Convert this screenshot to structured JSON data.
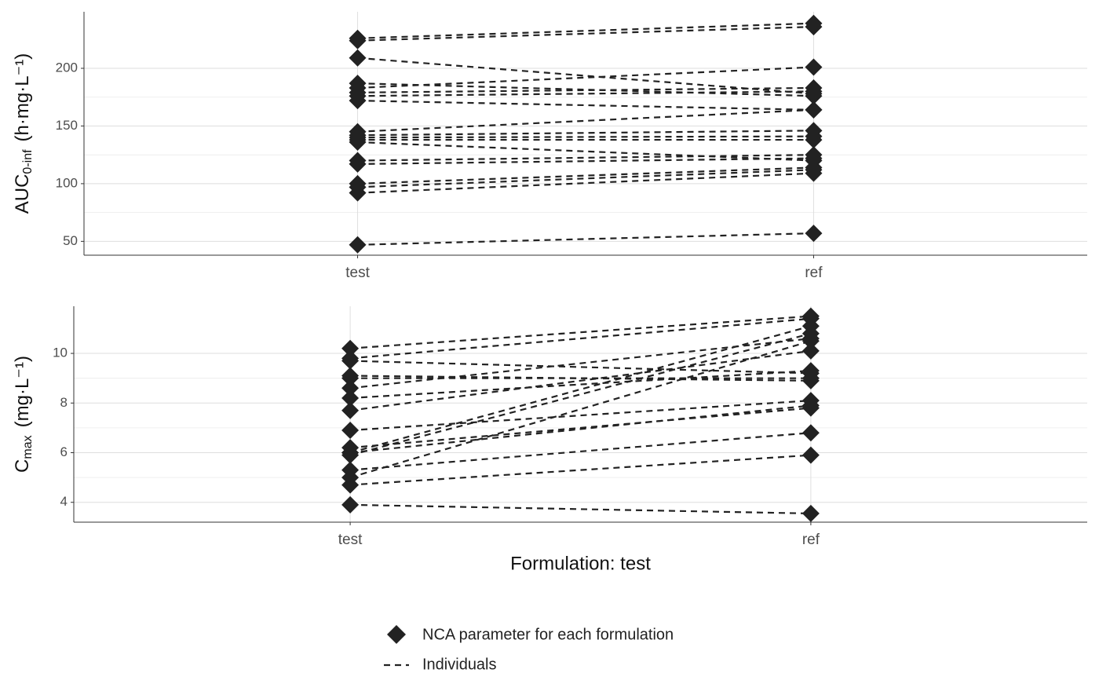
{
  "chart_data": [
    {
      "type": "line",
      "ylabel": {
        "main": "AUC",
        "sub": "0-inf",
        "unit": "(h·mg·L⁻¹)"
      },
      "categories": [
        "test",
        "ref"
      ],
      "color": "#222222",
      "marker": "diamond",
      "line_dash": "dashed",
      "grid": true,
      "ylim": [
        38,
        249
      ],
      "yticks": [
        50,
        100,
        150,
        200
      ],
      "series": [
        {
          "values": [
            226,
            239
          ]
        },
        {
          "values": [
            224,
            236
          ]
        },
        {
          "values": [
            209,
            178
          ]
        },
        {
          "values": [
            187,
            176
          ]
        },
        {
          "values": [
            183,
            201
          ]
        },
        {
          "values": [
            179,
            183
          ]
        },
        {
          "values": [
            176,
            180
          ]
        },
        {
          "values": [
            172,
            164
          ]
        },
        {
          "values": [
            145,
            164
          ]
        },
        {
          "values": [
            142,
            146
          ]
        },
        {
          "values": [
            140,
            141
          ]
        },
        {
          "values": [
            138,
            138
          ]
        },
        {
          "values": [
            136,
            120
          ]
        },
        {
          "values": [
            120,
            125
          ]
        },
        {
          "values": [
            117,
            122
          ]
        },
        {
          "values": [
            100,
            114
          ]
        },
        {
          "values": [
            97,
            112
          ]
        },
        {
          "values": [
            92,
            109
          ]
        },
        {
          "values": [
            47,
            57
          ]
        }
      ]
    },
    {
      "type": "line",
      "ylabel": {
        "main": "C",
        "sub": "max",
        "unit": "(mg·L⁻¹)"
      },
      "xlabel": "Formulation: test",
      "categories": [
        "test",
        "ref"
      ],
      "color": "#222222",
      "marker": "diamond",
      "line_dash": "dashed",
      "grid": true,
      "ylim": [
        3.2,
        11.9
      ],
      "yticks": [
        4,
        6,
        8,
        10
      ],
      "series": [
        {
          "values": [
            10.2,
            11.5
          ]
        },
        {
          "values": [
            9.8,
            11.4
          ]
        },
        {
          "values": [
            9.7,
            9.2
          ]
        },
        {
          "values": [
            9.1,
            8.9
          ]
        },
        {
          "values": [
            9.0,
            9.0
          ]
        },
        {
          "values": [
            8.6,
            10.6
          ]
        },
        {
          "values": [
            8.2,
            9.3
          ]
        },
        {
          "values": [
            7.7,
            10.1
          ]
        },
        {
          "values": [
            6.9,
            8.1
          ]
        },
        {
          "values": [
            6.2,
            7.8
          ]
        },
        {
          "values": [
            6.0,
            11.1
          ]
        },
        {
          "values": [
            5.9,
            10.8
          ]
        },
        {
          "values": [
            6.0,
            7.9
          ]
        },
        {
          "values": [
            5.3,
            6.8
          ]
        },
        {
          "values": [
            5.0,
            10.5
          ]
        },
        {
          "values": [
            4.7,
            5.9
          ]
        },
        {
          "values": [
            3.9,
            3.55
          ]
        }
      ]
    }
  ],
  "legend": {
    "marker_label": "NCA parameter for each formulation",
    "line_label": "Individuals"
  }
}
